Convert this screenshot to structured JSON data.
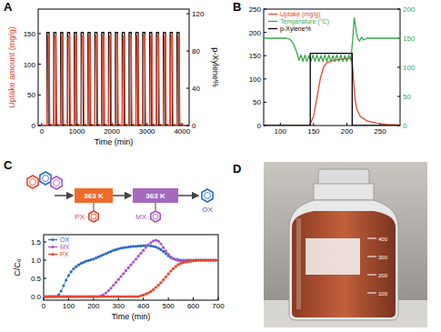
{
  "chart_data": [
    {
      "type": "line",
      "title": "A",
      "x_label": "Time (min)",
      "y_label": "Uptake amount (mg/g)",
      "y2_label": "p-Xylene%",
      "xlim": [
        -100,
        4200
      ],
      "xticks": [
        0,
        1000,
        2000,
        3000,
        4000
      ],
      "ylim": [
        0,
        190
      ],
      "yticks": [
        0,
        50,
        100,
        150
      ],
      "y2lim": [
        0,
        125
      ],
      "y2ticks": [
        0,
        40,
        80,
        120
      ],
      "series": [
        {
          "color": "#000000",
          "axis": "y2",
          "x": [
            0,
            150,
            150,
            210,
            210,
            345,
            345,
            405,
            405,
            540,
            540,
            600,
            600,
            735,
            735,
            795,
            795,
            930,
            930,
            990,
            990,
            1125,
            1125,
            1185,
            1185,
            1320,
            1320,
            1380,
            1380,
            1515,
            1515,
            1575,
            1575,
            1710,
            1710,
            1770,
            1770,
            1905,
            1905,
            1965,
            1965,
            2100,
            2100,
            2160,
            2160,
            2295,
            2295,
            2355,
            2355,
            2490,
            2490,
            2550,
            2550,
            2685,
            2685,
            2745,
            2745,
            2880,
            2880,
            2940,
            2940,
            3075,
            3075,
            3135,
            3135,
            3270,
            3270,
            3330,
            3330,
            3465,
            3465,
            3525,
            3525,
            3660,
            3660,
            3720,
            3720,
            3855,
            3855,
            3915,
            3915,
            4100
          ],
          "values": [
            0,
            0,
            100,
            100,
            0,
            0,
            100,
            100,
            0,
            0,
            100,
            100,
            0,
            0,
            100,
            100,
            0,
            0,
            100,
            100,
            0,
            0,
            100,
            100,
            0,
            0,
            100,
            100,
            0,
            0,
            100,
            100,
            0,
            0,
            100,
            100,
            0,
            0,
            100,
            100,
            0,
            0,
            100,
            100,
            0,
            0,
            100,
            100,
            0,
            0,
            100,
            100,
            0,
            0,
            100,
            100,
            0,
            0,
            100,
            100,
            0,
            0,
            100,
            100,
            0,
            0,
            100,
            100,
            0,
            0,
            100,
            100,
            0,
            0,
            100,
            100,
            0,
            0,
            100,
            100,
            0,
            0
          ]
        },
        {
          "color": "#e8452c",
          "axis": "y",
          "x": [
            0,
            150,
            175,
            210,
            230,
            345,
            370,
            405,
            425,
            540,
            565,
            600,
            620,
            735,
            760,
            795,
            815,
            930,
            955,
            990,
            1010,
            1125,
            1150,
            1185,
            1205,
            1320,
            1345,
            1380,
            1400,
            1515,
            1540,
            1575,
            1595,
            1710,
            1735,
            1770,
            1790,
            1905,
            1930,
            1965,
            1985,
            2100,
            2125,
            2160,
            2180,
            2295,
            2320,
            2355,
            2375,
            2490,
            2515,
            2550,
            2570,
            2685,
            2710,
            2745,
            2765,
            2880,
            2905,
            2940,
            2960,
            3075,
            3100,
            3135,
            3155,
            3270,
            3295,
            3330,
            3350,
            3465,
            3490,
            3525,
            3545,
            3660,
            3685,
            3720,
            3740,
            3855,
            3880,
            3915,
            3935,
            4100
          ],
          "values": [
            0,
            0,
            145,
            148,
            3,
            0,
            145,
            148,
            3,
            0,
            145,
            148,
            3,
            0,
            145,
            148,
            3,
            0,
            145,
            148,
            3,
            0,
            145,
            148,
            3,
            0,
            145,
            148,
            3,
            0,
            145,
            148,
            3,
            0,
            145,
            148,
            3,
            0,
            145,
            148,
            3,
            0,
            145,
            148,
            3,
            0,
            145,
            148,
            3,
            0,
            145,
            148,
            3,
            0,
            145,
            148,
            3,
            0,
            145,
            148,
            3,
            0,
            145,
            148,
            3,
            0,
            145,
            148,
            3,
            0,
            145,
            148,
            3,
            0,
            145,
            148,
            3,
            0,
            145,
            148,
            3,
            0
          ]
        }
      ]
    },
    {
      "type": "line",
      "title": "B",
      "legend": "top-left",
      "xlim": [
        75,
        280
      ],
      "xticks": [
        100,
        150,
        200,
        250
      ],
      "ylim": [
        0,
        250
      ],
      "yticks": [
        0,
        50,
        100,
        150,
        200,
        250
      ],
      "y2lim": [
        0,
        200
      ],
      "y2ticks": [
        0,
        50,
        100,
        150,
        200
      ],
      "series": [
        {
          "name": "Uptake (mg/g)",
          "color": "#e8452c",
          "axis": "y",
          "x": [
            75,
            144,
            150,
            155,
            160,
            165,
            170,
            180,
            195,
            207,
            209,
            212,
            215,
            220,
            230,
            245,
            260,
            280
          ],
          "values": [
            0,
            0,
            20,
            60,
            100,
            125,
            135,
            140,
            143,
            145,
            120,
            60,
            35,
            20,
            10,
            5,
            2,
            1
          ]
        },
        {
          "name": "Temperature (°C)",
          "color": "#3aa84a",
          "axis": "y2",
          "x": [
            75,
            110,
            115,
            120,
            125,
            128,
            131,
            134,
            137,
            140,
            143,
            146,
            149,
            152,
            155,
            158,
            161,
            164,
            167,
            170,
            173,
            176,
            179,
            182,
            185,
            188,
            191,
            194,
            197,
            200,
            203,
            206,
            209,
            211,
            213,
            216,
            219,
            222,
            225,
            230,
            280
          ],
          "values": [
            150,
            150,
            148,
            140,
            125,
            112,
            121,
            110,
            121,
            110,
            120,
            110,
            121,
            110,
            121,
            110,
            120,
            110,
            121,
            110,
            121,
            110,
            120,
            110,
            121,
            110,
            121,
            110,
            120,
            110,
            121,
            112,
            150,
            185,
            170,
            150,
            145,
            152,
            147,
            150,
            150
          ]
        },
        {
          "name": "p-Xylene%",
          "color": "#000000",
          "axis": "y",
          "x": [
            75,
            145,
            145,
            208,
            208,
            280
          ],
          "values": [
            0,
            0,
            155,
            155,
            0,
            0
          ]
        }
      ]
    },
    {
      "type": "line",
      "title": "C",
      "x_label": "Time (min)",
      "y_label": "C/C₀",
      "legend": "top-left",
      "xlim": [
        0,
        700
      ],
      "xticks": [
        0,
        100,
        200,
        300,
        400,
        500,
        600,
        700
      ],
      "ylim": [
        -0.1,
        1.7
      ],
      "yticks": [
        {
          "value": 0,
          "label": "0.0"
        },
        0.5,
        {
          "value": 1,
          "label": "1.0"
        },
        1.5
      ],
      "x": [
        0,
        10,
        20,
        30,
        40,
        50,
        60,
        70,
        80,
        90,
        100,
        110,
        120,
        130,
        140,
        150,
        160,
        170,
        180,
        190,
        200,
        210,
        220,
        230,
        240,
        250,
        260,
        270,
        280,
        290,
        300,
        310,
        320,
        330,
        340,
        350,
        360,
        370,
        380,
        390,
        400,
        410,
        420,
        430,
        440,
        450,
        460,
        470,
        480,
        490,
        500,
        510,
        520,
        530,
        540,
        550,
        560,
        570,
        580,
        590,
        600,
        610,
        620,
        630,
        640,
        650,
        660,
        670,
        680,
        690,
        700
      ],
      "series": [
        {
          "name": "OX",
          "color": "#2b6cc4",
          "marker": "circle",
          "values": [
            0,
            0,
            0,
            0,
            0,
            0,
            0.05,
            0.15,
            0.3,
            0.45,
            0.58,
            0.68,
            0.76,
            0.82,
            0.87,
            0.91,
            0.94,
            0.97,
            0.99,
            1.01,
            1.03,
            1.06,
            1.09,
            1.12,
            1.15,
            1.18,
            1.21,
            1.24,
            1.27,
            1.29,
            1.31,
            1.33,
            1.34,
            1.35,
            1.36,
            1.37,
            1.38,
            1.38,
            1.39,
            1.39,
            1.4,
            1.4,
            1.4,
            1.39,
            1.38,
            1.36,
            1.33,
            1.29,
            1.24,
            1.18,
            1.12,
            1.07,
            1.04,
            1.02,
            1.01,
            1,
            1,
            1,
            1,
            1,
            1,
            1,
            1,
            1,
            1,
            1,
            1,
            1,
            1,
            1,
            1
          ]
        },
        {
          "name": "MX",
          "color": "#a855c8",
          "marker": "circle",
          "values": [
            0,
            0,
            0,
            0,
            0,
            0,
            0,
            0,
            0,
            0,
            0,
            0,
            0,
            0,
            0,
            0,
            0,
            0,
            0,
            0,
            0,
            0,
            0,
            0.02,
            0.05,
            0.1,
            0.16,
            0.23,
            0.31,
            0.39,
            0.47,
            0.55,
            0.63,
            0.71,
            0.79,
            0.87,
            0.95,
            1.03,
            1.11,
            1.19,
            1.27,
            1.35,
            1.42,
            1.48,
            1.53,
            1.55,
            1.52,
            1.45,
            1.35,
            1.25,
            1.16,
            1.09,
            1.04,
            1.01,
            0.99,
            0.98,
            0.98,
            0.99,
            1,
            1,
            1,
            1,
            1,
            1,
            1,
            1,
            1,
            1,
            1,
            1,
            1
          ]
        },
        {
          "name": "PX",
          "color": "#e8452c",
          "marker": "circle",
          "values": [
            0,
            0,
            0,
            0,
            0,
            0,
            0,
            0,
            0,
            0,
            0,
            0,
            0,
            0,
            0,
            0,
            0,
            0,
            0,
            0,
            0,
            0,
            0,
            0,
            0,
            0,
            0,
            0,
            0,
            0,
            0,
            0,
            0,
            0,
            0,
            0,
            0,
            0,
            0,
            0.02,
            0.04,
            0.07,
            0.1,
            0.14,
            0.19,
            0.25,
            0.31,
            0.38,
            0.46,
            0.54,
            0.62,
            0.7,
            0.77,
            0.83,
            0.88,
            0.91,
            0.93,
            0.95,
            0.96,
            0.97,
            0.98,
            0.99,
            1,
            1,
            1,
            1,
            1,
            1,
            1,
            1,
            1
          ]
        }
      ]
    }
  ],
  "scheme": {
    "reactors": [
      {
        "label": "363 K",
        "color": "#f06a2a"
      },
      {
        "label": "363 K",
        "color": "#a569bd"
      }
    ],
    "outputs": [
      {
        "label": "PX",
        "color": "#e8452c"
      },
      {
        "label": "MX",
        "color": "#a855c8"
      },
      {
        "label": "OX",
        "color": "#2b6cc4"
      }
    ]
  },
  "photo": {
    "title": "D",
    "graduations": [
      "400",
      "300",
      "200",
      "100"
    ]
  }
}
